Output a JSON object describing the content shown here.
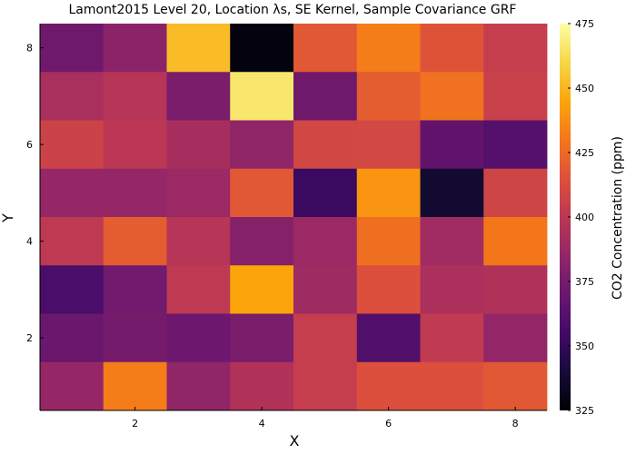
{
  "chart_data": {
    "type": "heatmap",
    "title": "Lamont2015 Level 20, Location λs, SE Kernel, Sample Covariance GRF",
    "xlabel": "X",
    "ylabel": "Y",
    "colorbar_label": "CO2 Concentration (ppm)",
    "x_ticks": [
      "2",
      "4",
      "6",
      "8"
    ],
    "y_ticks": [
      "2",
      "4",
      "6",
      "8"
    ],
    "colorbar_ticks": [
      "325",
      "350",
      "375",
      "400",
      "425",
      "450",
      "475"
    ],
    "xlim": [
      0.5,
      8.5
    ],
    "ylim": [
      0.5,
      8.5
    ],
    "clim": [
      325,
      475
    ],
    "colormap": "inferno",
    "grid": false,
    "rows_top_to_bottom": [
      [
        372,
        382,
        452,
        328,
        418,
        432,
        416,
        404
      ],
      [
        393,
        398,
        376,
        466,
        372,
        420,
        428,
        406
      ],
      [
        407,
        400,
        392,
        384,
        409,
        410,
        367,
        362
      ],
      [
        386,
        386,
        388,
        418,
        352,
        440,
        338,
        408
      ],
      [
        401,
        420,
        398,
        380,
        388,
        427,
        390,
        430
      ],
      [
        358,
        373,
        401,
        445,
        389,
        414,
        394,
        396
      ],
      [
        370,
        374,
        371,
        376,
        404,
        361,
        402,
        385
      ],
      [
        386,
        432,
        384,
        396,
        404,
        414,
        414,
        418
      ]
    ]
  }
}
